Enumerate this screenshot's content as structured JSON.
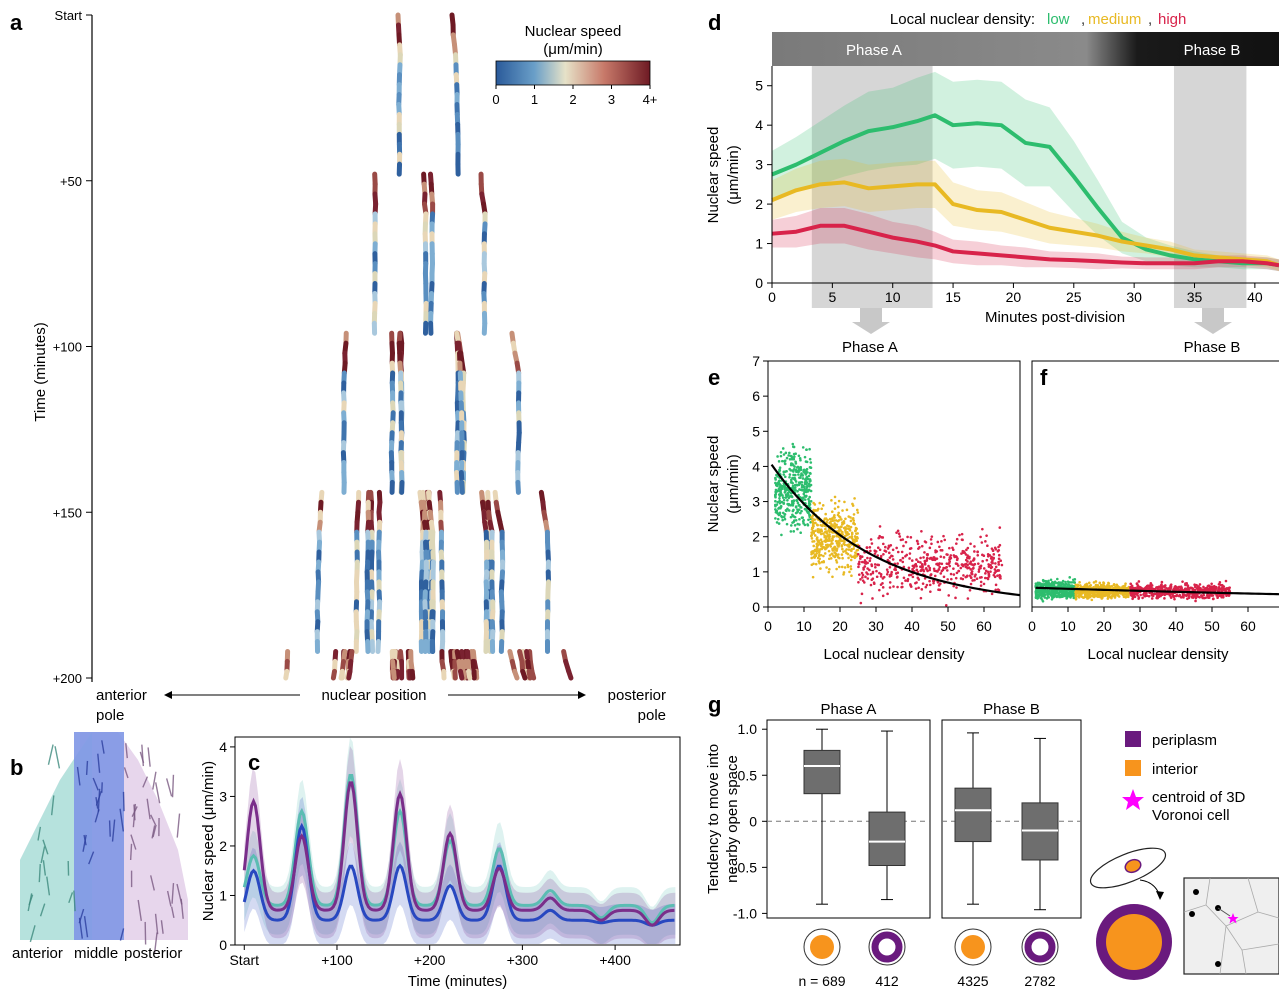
{
  "panels": {
    "a": {
      "label": "a",
      "ylabel": "Time (minutes)",
      "yticks": [
        "Start",
        "+50",
        "+100",
        "+150",
        "+200"
      ],
      "colorbar": {
        "title": "Nuclear speed",
        "unit": "(μm/min)",
        "ticks": [
          "0",
          "1",
          "2",
          "3",
          "4+"
        ]
      },
      "anterior": [
        "anterior",
        "pole"
      ],
      "posterior": [
        "posterior",
        "pole"
      ],
      "position_label": "nuclear position"
    },
    "b": {
      "label": "b",
      "regions": [
        "anterior",
        "middle",
        "posterior"
      ]
    },
    "c": {
      "label": "c"
    },
    "d": {
      "label": "d",
      "legend_prefix": "Local nuclear density:",
      "legend": [
        "low",
        "medium",
        "high"
      ],
      "phase_a": "Phase A",
      "phase_b": "Phase B"
    },
    "e": {
      "label": "e",
      "title": "Phase A"
    },
    "f": {
      "label": "f",
      "title": "Phase B"
    },
    "g": {
      "label": "g",
      "ylabel": [
        "Tendency to move into",
        "nearby open space"
      ],
      "legend": [
        "periplasm",
        "interior",
        "centroid of 3D",
        "Voronoi cell"
      ],
      "n_labels": [
        "n = 689",
        "412",
        "4325",
        "2782"
      ]
    }
  },
  "colors": {
    "low": "#2dbd6e",
    "medium": "#e8b923",
    "high": "#d8234a",
    "anterior": "#5bbdb3",
    "middle": "#2848c0",
    "posterior": "#7a2e8a",
    "periplasm": "#6a1a7e",
    "interior": "#f7941d",
    "centroid": "#ff00ff",
    "box": "#6e6e6e"
  },
  "chart_data": [
    {
      "type": "heatmap",
      "panel": "a",
      "description_fields": "nuclear trajectories colored by speed",
      "xlabel": "nuclear position",
      "ylabel": "Time (minutes)",
      "y_ticks": [
        "Start",
        "+50",
        "+100",
        "+150",
        "+200"
      ],
      "ylim": [
        0,
        200
      ],
      "color_range": [
        0,
        4
      ]
    },
    {
      "type": "line",
      "panel": "c",
      "xlabel": "Time (minutes)",
      "ylabel": "Nuclear speed (μm/min)",
      "x_ticks": [
        "Start",
        "+100",
        "+200",
        "+300",
        "+400"
      ],
      "y_ticks": [
        "0",
        "1",
        "2",
        "3",
        "4"
      ],
      "xlim": [
        -10,
        470
      ],
      "ylim": [
        0,
        4.2
      ],
      "peaks": [
        {
          "t": 10,
          "anterior": 1.8,
          "middle": 1.5,
          "posterior": 2.9
        },
        {
          "t": 62,
          "anterior": 2.7,
          "middle": 2.4,
          "posterior": 2.2
        },
        {
          "t": 115,
          "anterior": 3.45,
          "middle": 1.6,
          "posterior": 3.3
        },
        {
          "t": 168,
          "anterior": 2.7,
          "middle": 1.6,
          "posterior": 3.05
        },
        {
          "t": 222,
          "anterior": 2.1,
          "middle": 1.2,
          "posterior": 2.25
        },
        {
          "t": 275,
          "anterior": 1.95,
          "middle": 1.6,
          "posterior": 1.55
        },
        {
          "t": 330,
          "anterior": 1.1,
          "middle": 0.7,
          "posterior": 0.95
        },
        {
          "t": 385,
          "anterior": 0.55,
          "middle": 0.45,
          "posterior": 0.5
        },
        {
          "t": 440,
          "anterior": 0.45,
          "middle": 0.4,
          "posterior": 0.4
        }
      ],
      "baseline": {
        "anterior": 0.8,
        "middle": 0.5,
        "posterior": 0.7
      }
    },
    {
      "type": "line",
      "panel": "d",
      "xlabel": "Minutes post-division",
      "ylabel": "Nuclear speed (μm/min)",
      "x_ticks": [
        0,
        5,
        10,
        15,
        20,
        25,
        30,
        35,
        40
      ],
      "y_ticks": [
        0,
        1,
        2,
        3,
        4,
        5
      ],
      "xlim": [
        0,
        42
      ],
      "ylim": [
        0,
        5.5
      ],
      "phase_a_range": [
        3.3,
        13.3
      ],
      "phase_b_range": [
        33.3,
        39.3
      ],
      "x": [
        0,
        2,
        4,
        6,
        8,
        10,
        12,
        13.5,
        15,
        17,
        19,
        21,
        23,
        25,
        27,
        29,
        31,
        33,
        35,
        37,
        39,
        41,
        42
      ],
      "series": [
        {
          "name": "low",
          "values": [
            2.75,
            3.0,
            3.3,
            3.6,
            3.85,
            3.95,
            4.1,
            4.25,
            4.0,
            4.05,
            4.0,
            3.55,
            3.45,
            2.7,
            1.9,
            1.15,
            0.85,
            0.7,
            0.6,
            0.55,
            0.5,
            0.5,
            0.45
          ],
          "band": [
            0.6,
            0.7,
            0.8,
            0.9,
            1.0,
            1.0,
            1.1,
            1.1,
            1.1,
            1.1,
            1.1,
            1.1,
            1.0,
            0.9,
            0.7,
            0.4,
            0.3,
            0.25,
            0.2,
            0.15,
            0.15,
            0.15,
            0.15
          ]
        },
        {
          "name": "medium",
          "values": [
            2.1,
            2.35,
            2.5,
            2.55,
            2.4,
            2.45,
            2.5,
            2.5,
            2.0,
            1.85,
            1.8,
            1.6,
            1.4,
            1.3,
            1.2,
            1.05,
            0.95,
            0.85,
            0.7,
            0.65,
            0.6,
            0.55,
            0.45
          ],
          "band": [
            0.5,
            0.55,
            0.6,
            0.6,
            0.6,
            0.6,
            0.6,
            0.6,
            0.55,
            0.5,
            0.5,
            0.45,
            0.4,
            0.35,
            0.3,
            0.25,
            0.2,
            0.2,
            0.15,
            0.15,
            0.15,
            0.15,
            0.15
          ]
        },
        {
          "name": "high",
          "values": [
            1.25,
            1.3,
            1.45,
            1.45,
            1.3,
            1.15,
            1.05,
            0.95,
            0.8,
            0.75,
            0.7,
            0.65,
            0.6,
            0.58,
            0.55,
            0.52,
            0.5,
            0.5,
            0.5,
            0.55,
            0.55,
            0.5,
            0.45
          ],
          "band": [
            0.35,
            0.4,
            0.45,
            0.45,
            0.45,
            0.4,
            0.4,
            0.35,
            0.3,
            0.3,
            0.25,
            0.25,
            0.2,
            0.2,
            0.2,
            0.15,
            0.15,
            0.15,
            0.15,
            0.15,
            0.15,
            0.15,
            0.15
          ]
        }
      ]
    },
    {
      "type": "scatter",
      "panel": "e",
      "title": "Phase A",
      "xlabel": "Local nuclear density",
      "ylabel": "Nuclear speed (μm/min)",
      "x_ticks": [
        0,
        10,
        20,
        30,
        40,
        50,
        60
      ],
      "y_ticks": [
        0,
        1,
        2,
        3,
        4,
        5,
        6,
        7
      ],
      "xlim": [
        0,
        70
      ],
      "ylim": [
        0,
        7
      ],
      "fit": {
        "a": 4.2,
        "k": 0.036
      },
      "groups": [
        {
          "name": "low",
          "x_range": [
            2,
            12
          ],
          "y_mean": 3.3,
          "y_sd": 1.1
        },
        {
          "name": "medium",
          "x_range": [
            12,
            25
          ],
          "y_mean": 2.0,
          "y_sd": 0.9
        },
        {
          "name": "high",
          "x_range": [
            25,
            65
          ],
          "y_mean": 1.2,
          "y_sd": 0.8
        }
      ]
    },
    {
      "type": "scatter",
      "panel": "f",
      "title": "Phase B",
      "xlabel": "Local nuclear density",
      "x_ticks": [
        0,
        10,
        20,
        30,
        40,
        50,
        60
      ],
      "xlim": [
        0,
        70
      ],
      "ylim": [
        0,
        7
      ],
      "fit": {
        "a": 0.55,
        "k": 0.006
      },
      "groups": [
        {
          "name": "low",
          "x_range": [
            1,
            12
          ],
          "y_mean": 0.5,
          "y_sd": 0.25
        },
        {
          "name": "medium",
          "x_range": [
            12,
            27
          ],
          "y_mean": 0.45,
          "y_sd": 0.2
        },
        {
          "name": "high",
          "x_range": [
            27,
            55
          ],
          "y_mean": 0.45,
          "y_sd": 0.2
        }
      ]
    },
    {
      "type": "bar",
      "panel": "g",
      "subtype": "boxplot",
      "ylabel": "Tendency to move into nearby open space",
      "y_ticks": [
        "1.0",
        "0.5",
        "0",
        "-0.5",
        "-1.0"
      ],
      "ylim": [
        -1.05,
        1.1
      ],
      "groups": [
        "Phase A",
        "Phase B"
      ],
      "boxes": [
        {
          "group": "Phase A",
          "name": "interior",
          "n": 689,
          "min": -0.9,
          "q1": 0.3,
          "median": 0.6,
          "q3": 0.77,
          "max": 1.0
        },
        {
          "group": "Phase A",
          "name": "periplasm",
          "n": 412,
          "min": -0.85,
          "q1": -0.48,
          "median": -0.22,
          "q3": 0.1,
          "max": 0.98
        },
        {
          "group": "Phase B",
          "name": "interior",
          "n": 4325,
          "min": -0.9,
          "q1": -0.22,
          "median": 0.12,
          "q3": 0.36,
          "max": 0.96
        },
        {
          "group": "Phase B",
          "name": "periplasm",
          "n": 2782,
          "min": -0.96,
          "q1": -0.42,
          "median": -0.1,
          "q3": 0.2,
          "max": 0.9
        }
      ]
    }
  ]
}
